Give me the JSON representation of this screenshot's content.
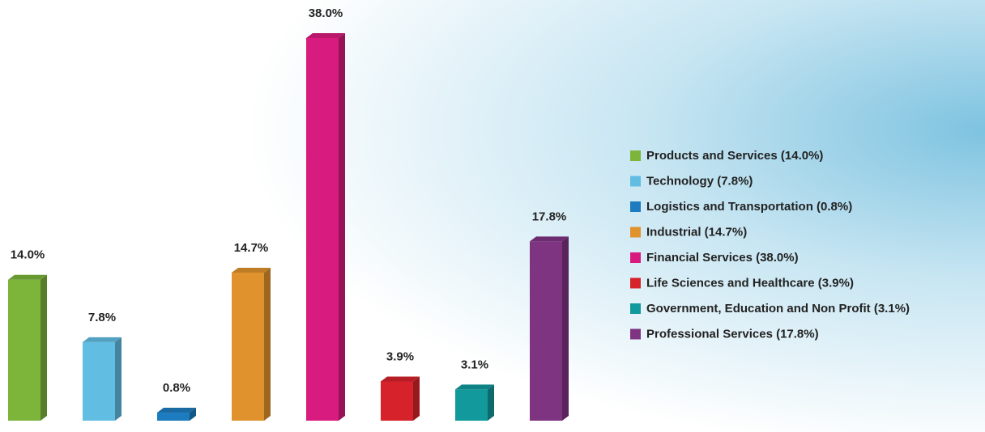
{
  "chart_data": {
    "type": "bar3d",
    "categories": [
      "Products and Services (14.0%)",
      "Technology (7.8%)",
      "Logistics and Transportation (0.8%)",
      "Industrial (14.7%)",
      "Financial Services (38.0%)",
      "Life Sciences and Healthcare (3.9%)",
      "Government, Education and Non Profit (3.1%)",
      "Professional Services (17.8%)"
    ],
    "values": [
      14.0,
      7.8,
      0.8,
      14.7,
      38.0,
      3.9,
      3.1,
      17.8
    ],
    "value_labels": [
      "14.0%",
      "7.8%",
      "0.8%",
      "14.7%",
      "38.0%",
      "3.9%",
      "3.1%",
      "17.8%"
    ],
    "colors": [
      "#7cb53a",
      "#62bde3",
      "#1d7bbf",
      "#e0932c",
      "#d81b7e",
      "#d6232b",
      "#12999c",
      "#7f3482"
    ]
  }
}
